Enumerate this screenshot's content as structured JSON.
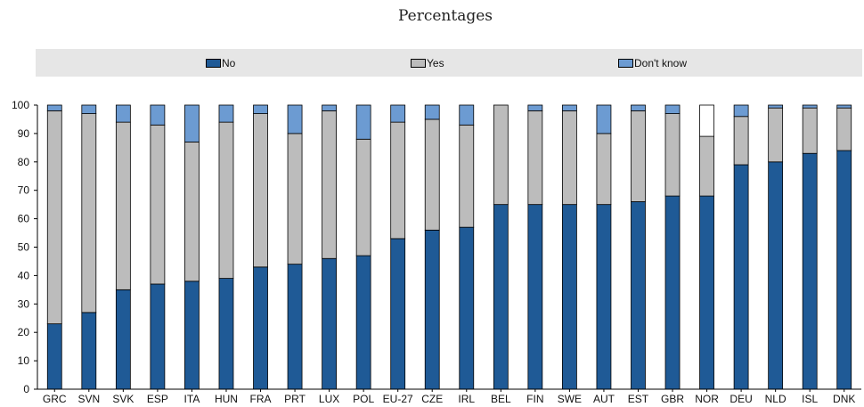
{
  "header": {
    "subtitle": "Percentages"
  },
  "colors": {
    "no": "#1f5a96",
    "yes": "#bcbcbc",
    "dont_know": "#6c9bd2",
    "dont_know_white": "#ffffff",
    "legend_bg": "#e6e6e6"
  },
  "chart_data": {
    "type": "bar",
    "stacked": true,
    "title": "",
    "subtitle": "Percentages",
    "xlabel": "",
    "ylabel": "",
    "ylim": [
      0,
      100
    ],
    "yticks": [
      0,
      10,
      20,
      30,
      40,
      50,
      60,
      70,
      80,
      90,
      100
    ],
    "grid": false,
    "legend_position": "top",
    "categories": [
      "GRC",
      "SVN",
      "SVK",
      "ESP",
      "ITA",
      "HUN",
      "FRA",
      "PRT",
      "LUX",
      "POL",
      "EU-27",
      "CZE",
      "IRL",
      "BEL",
      "FIN",
      "SWE",
      "AUT",
      "EST",
      "GBR",
      "NOR",
      "DEU",
      "NLD",
      "ISL",
      "DNK"
    ],
    "series": [
      {
        "name": "No",
        "values": [
          23,
          27,
          35,
          37,
          38,
          39,
          43,
          44,
          46,
          47,
          53,
          56,
          57,
          65,
          65,
          65,
          65,
          66,
          68,
          68,
          79,
          80,
          83,
          84
        ]
      },
      {
        "name": "Yes",
        "values": [
          75,
          70,
          59,
          56,
          49,
          55,
          54,
          46,
          52,
          41,
          41,
          39,
          36,
          35,
          33,
          33,
          25,
          32,
          29,
          21,
          17,
          19,
          16,
          15
        ]
      },
      {
        "name": "Don't know",
        "values": [
          2,
          3,
          6,
          7,
          13,
          6,
          3,
          10,
          2,
          12,
          6,
          5,
          7,
          0,
          2,
          2,
          10,
          2,
          3,
          11,
          4,
          1,
          1,
          1
        ]
      }
    ]
  }
}
